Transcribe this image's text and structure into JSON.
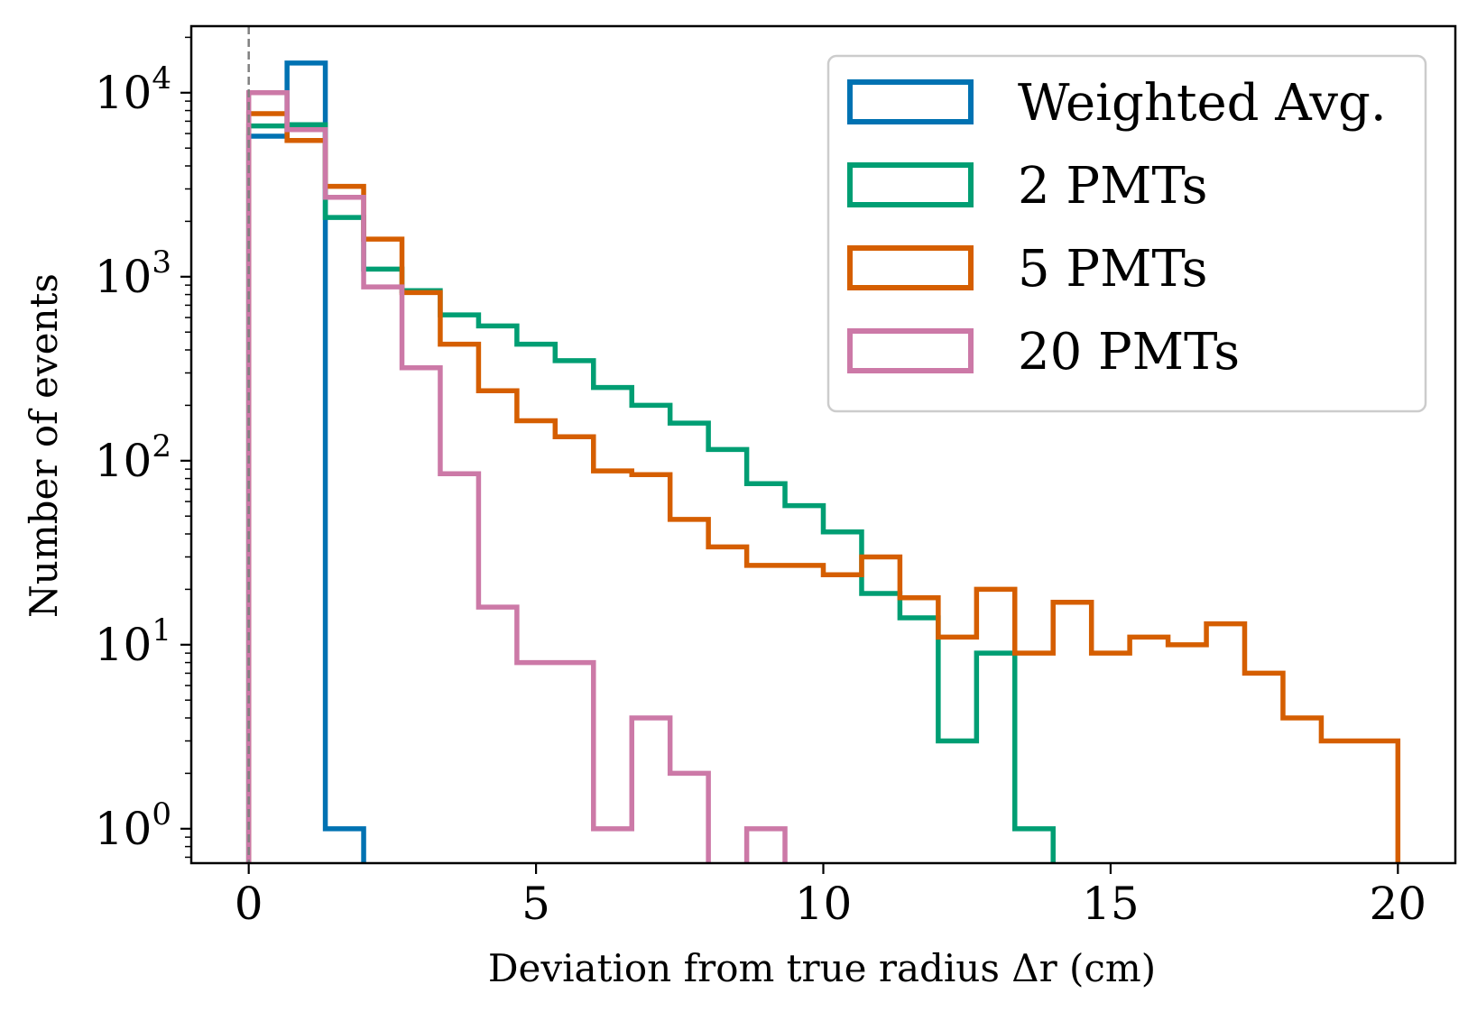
{
  "chart_data": {
    "type": "histogram-step",
    "xlabel": "Deviation from true radius Δr (cm)",
    "ylabel": "Number of events",
    "xlim": [
      -1.0,
      21.0
    ],
    "ylim": [
      0.65,
      23000
    ],
    "yscale": "log",
    "xticks": [
      0,
      5,
      10,
      15,
      20
    ],
    "yticks": [
      {
        "base": "10",
        "exp": "0",
        "value": 1
      },
      {
        "base": "10",
        "exp": "1",
        "value": 10
      },
      {
        "base": "10",
        "exp": "2",
        "value": 100
      },
      {
        "base": "10",
        "exp": "3",
        "value": 1000
      },
      {
        "base": "10",
        "exp": "4",
        "value": 10000
      }
    ],
    "reference_line": {
      "x": 0,
      "style": "dashed",
      "color": "#808080"
    },
    "legend": {
      "position": "top-right"
    },
    "series": [
      {
        "name": "Weighted Avg.",
        "color": "#0072B2",
        "bin_edges": [
          0,
          0.667,
          1.333,
          2.0
        ],
        "counts": [
          5800,
          14500,
          1,
          0
        ]
      },
      {
        "name": "2 PMTs",
        "color": "#009E73",
        "bin_edges": [
          0,
          0.667,
          1.333,
          2.0,
          2.667,
          3.333,
          4.0,
          4.667,
          5.333,
          6.0,
          6.667,
          7.333,
          8.0,
          8.667,
          9.333,
          10.0,
          10.667,
          11.333,
          12.0,
          12.667,
          13.333,
          14.0
        ],
        "counts": [
          6600,
          6700,
          2100,
          1100,
          840,
          620,
          540,
          430,
          350,
          250,
          200,
          160,
          115,
          75,
          57,
          41,
          19,
          14,
          3,
          9,
          1
        ]
      },
      {
        "name": "5 PMTs",
        "color": "#D55E00",
        "bin_edges": [
          0,
          0.667,
          1.333,
          2.0,
          2.667,
          3.333,
          4.0,
          4.667,
          5.333,
          6.0,
          6.667,
          7.333,
          8.0,
          8.667,
          9.333,
          10.0,
          10.667,
          11.333,
          12.0,
          12.667,
          13.333,
          14.0,
          14.667,
          15.333,
          16.0,
          16.667,
          17.333,
          18.0,
          18.667,
          19.333,
          20.0
        ],
        "counts": [
          7700,
          5500,
          3100,
          1600,
          820,
          430,
          240,
          165,
          135,
          88,
          84,
          48,
          34,
          27,
          27,
          24,
          30,
          18,
          11,
          20,
          9,
          17,
          9,
          11,
          10,
          13,
          7,
          4,
          3,
          3
        ]
      },
      {
        "name": "20 PMTs",
        "color": "#CC79A7",
        "bin_edges": [
          0,
          0.667,
          1.333,
          2.0,
          2.667,
          3.333,
          4.0,
          4.667,
          5.333,
          6.0,
          6.667,
          7.333,
          8.0,
          8.667,
          9.333
        ],
        "counts": [
          10000,
          6300,
          2700,
          880,
          320,
          85,
          16,
          8,
          8,
          1,
          4,
          2,
          0,
          1
        ]
      }
    ]
  }
}
